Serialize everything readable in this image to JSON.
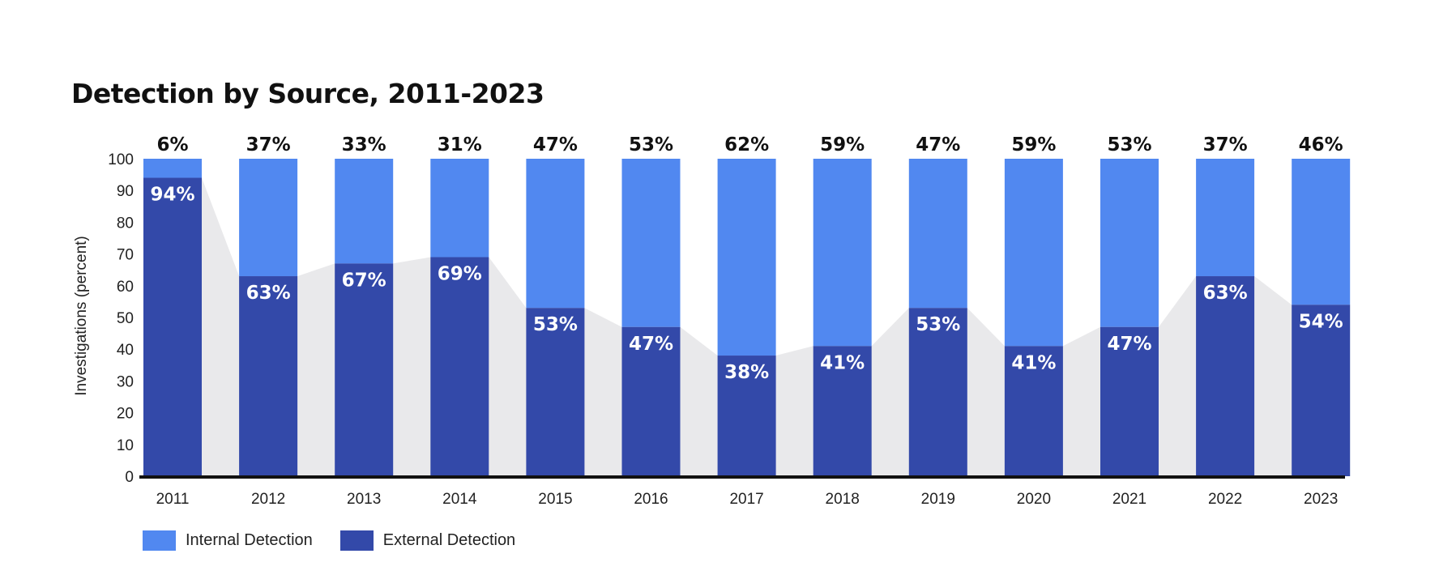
{
  "chart_data": {
    "type": "bar",
    "stacked": true,
    "title": "Detection by Source, 2011-2023",
    "ylabel": "Investigations (percent)",
    "xlabel": "",
    "ylim": [
      0,
      100
    ],
    "yticks": [
      0,
      10,
      20,
      30,
      40,
      50,
      60,
      70,
      80,
      90,
      100
    ],
    "categories": [
      "2011",
      "2012",
      "2013",
      "2014",
      "2015",
      "2016",
      "2017",
      "2018",
      "2019",
      "2020",
      "2021",
      "2022",
      "2023"
    ],
    "series": [
      {
        "name": "Internal Detection",
        "color": "#5188f0",
        "values": [
          6,
          37,
          33,
          31,
          47,
          53,
          62,
          59,
          47,
          59,
          53,
          37,
          46
        ],
        "labels": [
          "6%",
          "37%",
          "33%",
          "31%",
          "47%",
          "53%",
          "62%",
          "59%",
          "47%",
          "59%",
          "53%",
          "37%",
          "46%"
        ]
      },
      {
        "name": "External Detection",
        "color": "#3349a9",
        "values": [
          94,
          63,
          67,
          69,
          53,
          47,
          38,
          41,
          53,
          41,
          47,
          63,
          54
        ],
        "labels": [
          "94%",
          "63%",
          "67%",
          "69%",
          "53%",
          "47%",
          "38%",
          "41%",
          "53%",
          "41%",
          "47%",
          "63%",
          "54%"
        ]
      }
    ],
    "legend": "bottom-left",
    "trend_shading_color": "#e9e9eb",
    "axis_color": "#111111"
  }
}
